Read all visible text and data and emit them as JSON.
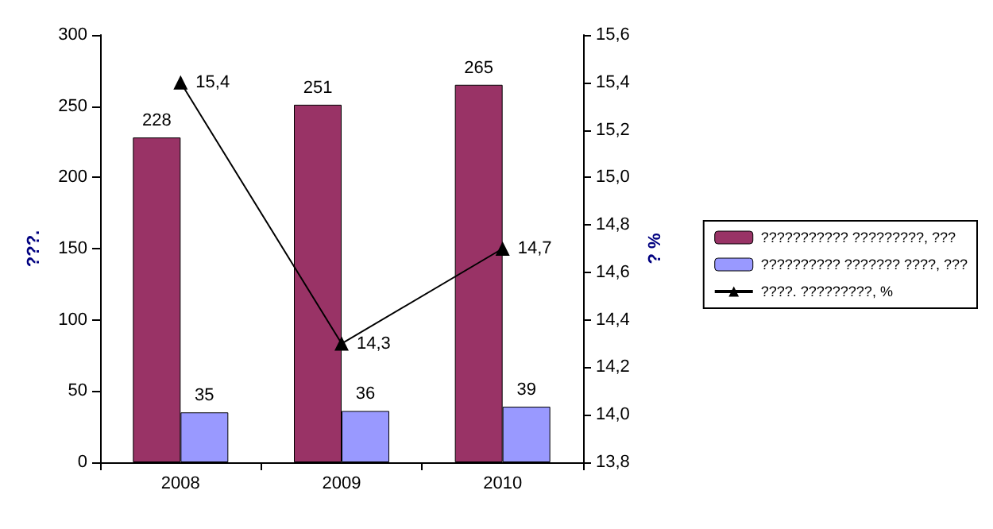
{
  "chart_data": {
    "type": "bar",
    "categories": [
      "2008",
      "2009",
      "2010"
    ],
    "ylabel": "???.",
    "y2label": "? %",
    "series": [
      {
        "name": "??????????? ?????????, ???",
        "color": "#993366",
        "values": [
          228,
          251,
          265
        ],
        "value_labels": [
          "228",
          "251",
          "265"
        ]
      },
      {
        "name": "?????????? ??????? ????, ???",
        "color": "#9999ff",
        "values": [
          35,
          36,
          39
        ],
        "value_labels": [
          "35",
          "36",
          "39"
        ]
      },
      {
        "name": "????. ?????????, %",
        "type": "line",
        "axis": "y2",
        "color": "#000000",
        "values": [
          15.4,
          14.3,
          14.7
        ],
        "value_labels": [
          "15,4",
          "14,3",
          "14,7"
        ],
        "marker": "triangle"
      }
    ],
    "ylim": [
      0,
      300
    ],
    "yticks": [
      0,
      50,
      100,
      150,
      200,
      250,
      300
    ],
    "y2lim": [
      13.8,
      15.6
    ],
    "y2ticks": [
      {
        "value": 13.8,
        "label": "13,8"
      },
      {
        "value": 14.0,
        "label": "14,0"
      },
      {
        "value": 14.2,
        "label": "14,2"
      },
      {
        "value": 14.4,
        "label": "14,4"
      },
      {
        "value": 14.6,
        "label": "14,6"
      },
      {
        "value": 14.8,
        "label": "14,8"
      },
      {
        "value": 15.0,
        "label": "15,0"
      },
      {
        "value": 15.2,
        "label": "15,2"
      },
      {
        "value": 15.4,
        "label": "15,4"
      },
      {
        "value": 15.6,
        "label": "15,6"
      }
    ],
    "legend": "right",
    "grid": false
  }
}
